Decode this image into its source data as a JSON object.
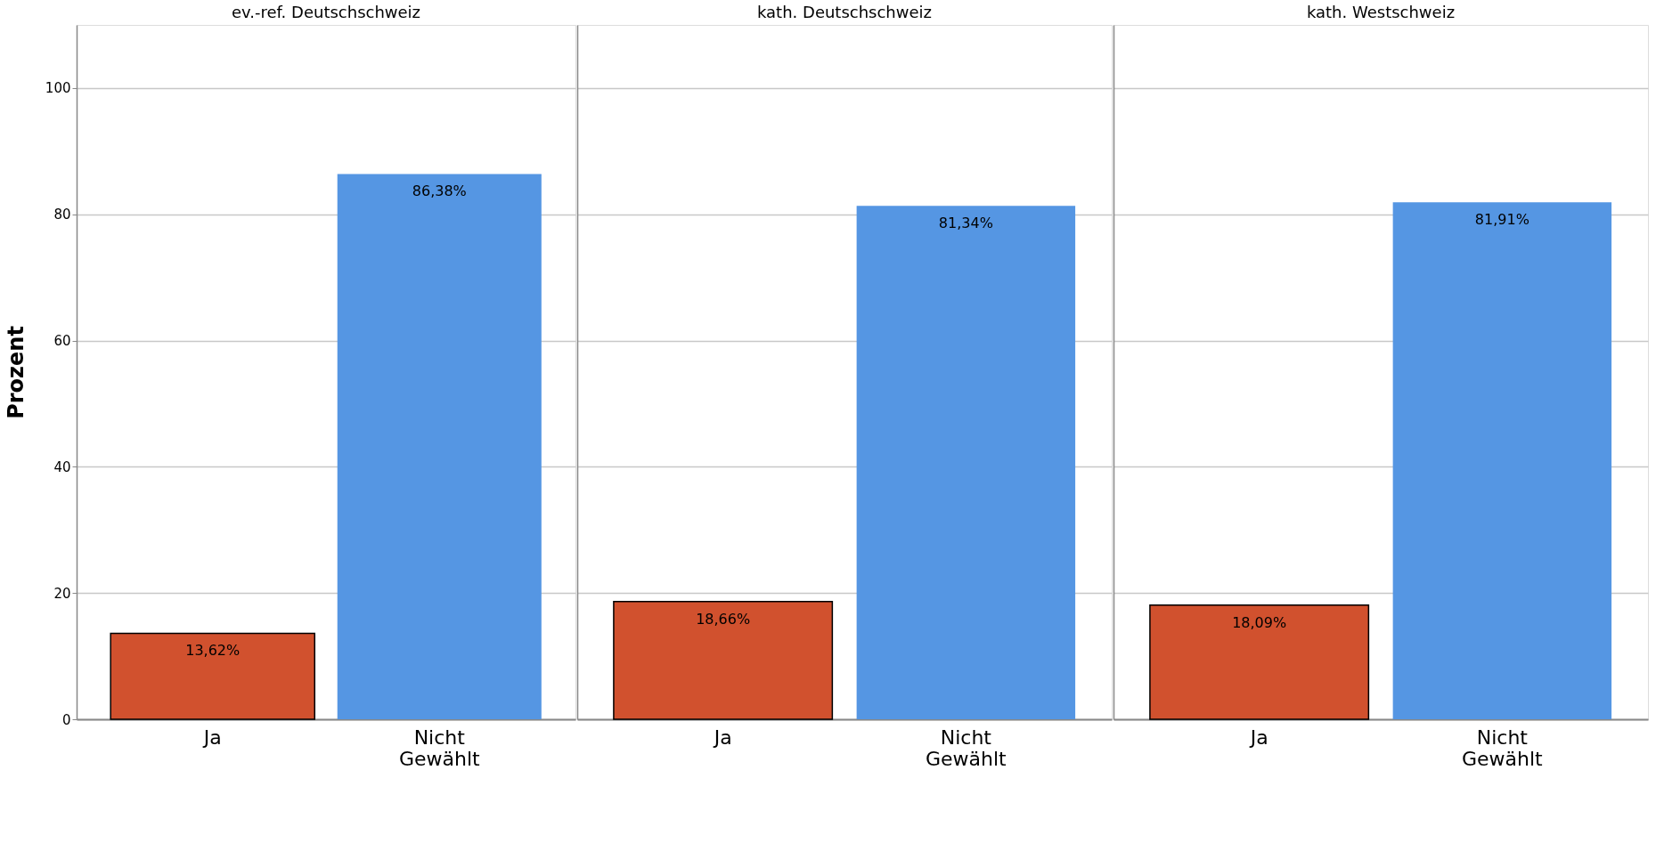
{
  "chart_data": [
    {
      "type": "bar",
      "title": "ev.-ref. Deutschschweiz",
      "ylabel": "Prozent",
      "categories": [
        "Ja",
        "Nicht Gewählt"
      ],
      "values": [
        13.62,
        86.38
      ],
      "colors": [
        "#d1512e",
        "#5596e3"
      ],
      "value_labels": [
        "13,62%",
        "86,38%"
      ],
      "ylim": [
        0,
        110
      ],
      "yticks": [
        0,
        20,
        40,
        60,
        80,
        100
      ],
      "grid": "y"
    },
    {
      "type": "bar",
      "title": "kath. Deutschschweiz",
      "categories": [
        "Ja",
        "Nicht Gewählt"
      ],
      "values": [
        18.66,
        81.34
      ],
      "colors": [
        "#d1512e",
        "#5596e3"
      ],
      "value_labels": [
        "18,66%",
        "81,34%"
      ],
      "ylim": [
        0,
        110
      ],
      "yticks": [
        0,
        20,
        40,
        60,
        80,
        100
      ],
      "grid": "y",
      "tick_labels": "x"
    },
    {
      "type": "bar",
      "title": "kath. Westschweiz",
      "categories": [
        "Ja",
        "Nicht Gewählt"
      ],
      "values": [
        18.09,
        81.91
      ],
      "colors": [
        "#d1512e",
        "#5596e3"
      ],
      "value_labels": [
        "18,09%",
        "81,91%"
      ],
      "ylim": [
        0,
        110
      ],
      "yticks": [
        0,
        20,
        40,
        60,
        80,
        100
      ],
      "grid": "y",
      "tick_labels": "x"
    }
  ]
}
